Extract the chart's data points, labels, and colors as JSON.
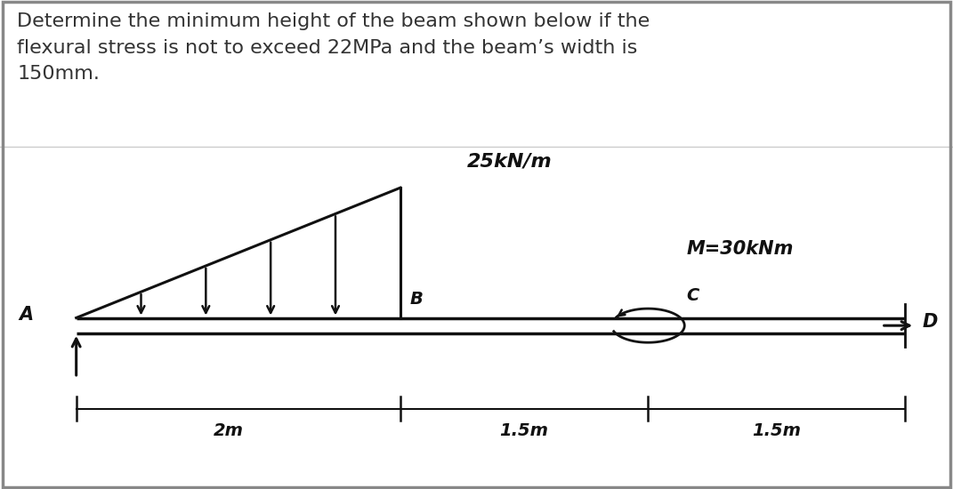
{
  "title_text": "Determine the minimum height of the beam shown below if the\nflexural stress is not to exceed 22MPa and the beam’s width is\n150mm.",
  "title_fontsize": 16,
  "title_color": "#333333",
  "bg_color_top": "#ffffff",
  "bg_color_diagram": "#e8e8e8",
  "beam_color": "#111111",
  "load_label": "25kN/m",
  "moment_label": "M=30kNm",
  "label_A": "A",
  "label_B": "B",
  "label_C": "C",
  "label_D": "D",
  "dim_2m": "2m",
  "dim_15m1": "1.5m",
  "dim_15m2": "1.5m",
  "border_color": "#888888",
  "fig_width": 10.71,
  "fig_height": 5.5,
  "dpi": 100
}
